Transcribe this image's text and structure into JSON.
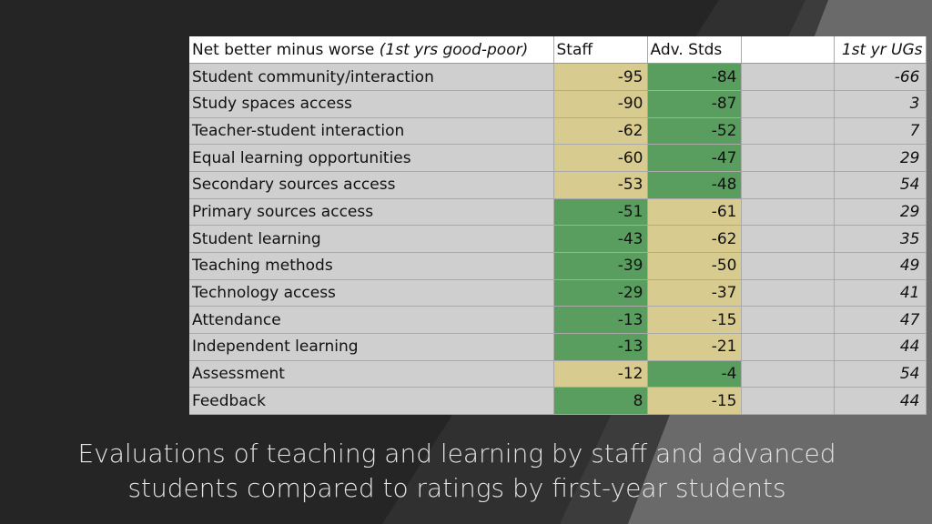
{
  "table": {
    "header": {
      "label_main": "Net better minus worse",
      "label_italic": "(1st yrs good-poor)",
      "staff": "Staff",
      "adv": "Adv. Stds",
      "blank": "",
      "ug": "1st yr UGs"
    },
    "rows": [
      {
        "label": "Student community/interaction",
        "staff": "-95",
        "adv": "-84",
        "ug": "-66"
      },
      {
        "label": "Study spaces access",
        "staff": "-90",
        "adv": "-87",
        "ug": "3"
      },
      {
        "label": "Teacher-student interaction",
        "staff": "-62",
        "adv": "-52",
        "ug": "7"
      },
      {
        "label": "Equal learning opportunities",
        "staff": "-60",
        "adv": "-47",
        "ug": "29"
      },
      {
        "label": "Secondary sources access",
        "staff": "-53",
        "adv": "-48",
        "ug": "54"
      },
      {
        "label": "Primary sources access",
        "staff": "-51",
        "adv": "-61",
        "ug": "29"
      },
      {
        "label": "Student learning",
        "staff": "-43",
        "adv": "-62",
        "ug": "35"
      },
      {
        "label": "Teaching methods",
        "staff": "-39",
        "adv": "-50",
        "ug": "49"
      },
      {
        "label": "Technology access",
        "staff": "-29",
        "adv": "-37",
        "ug": "41"
      },
      {
        "label": "Attendance",
        "staff": "-13",
        "adv": "-15",
        "ug": "47"
      },
      {
        "label": "Independent learning",
        "staff": "-13",
        "adv": "-21",
        "ug": "44"
      },
      {
        "label": "Assessment",
        "staff": "-12",
        "adv": "-4",
        "ug": "54"
      },
      {
        "label": "Feedback",
        "staff": "8",
        "adv": "-15",
        "ug": "44"
      }
    ]
  },
  "caption": {
    "line1": "Evaluations of teaching and learning by staff and advanced",
    "line2": "students compared to ratings by first-year students"
  },
  "colors": {
    "background": "#252525",
    "cell": "#cfcfcf",
    "highlight_green": "#5a9e5f",
    "highlight_tan": "#d8cb8f"
  }
}
